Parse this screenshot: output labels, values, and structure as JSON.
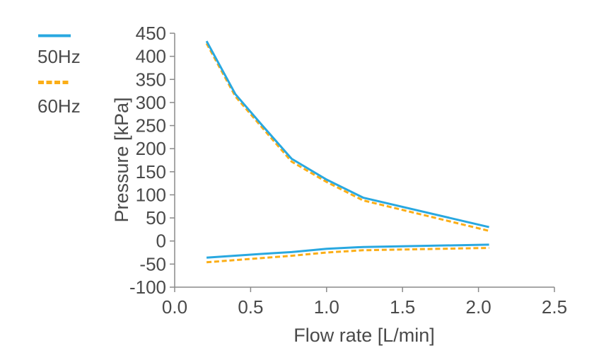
{
  "legend": {
    "items": [
      {
        "label": "50Hz",
        "color": "#29a8e0",
        "style": "solid"
      },
      {
        "label": "60Hz",
        "color": "#fbae17",
        "style": "dashed"
      }
    ]
  },
  "chart_data": {
    "type": "line",
    "title": "",
    "xlabel": "Flow rate [L/min]",
    "ylabel": "Pressure [kPa]",
    "xlim": [
      0.0,
      2.5
    ],
    "ylim": [
      -100,
      450
    ],
    "xticks": [
      0.0,
      0.5,
      1.0,
      1.5,
      2.0,
      2.5
    ],
    "xtick_labels": [
      "0.0",
      "0.5",
      "1.0",
      "1.5",
      "2.0",
      "2.5"
    ],
    "yticks": [
      -100,
      -50,
      0,
      50,
      100,
      150,
      200,
      250,
      300,
      350,
      400,
      450
    ],
    "ytick_labels": [
      "-100",
      "-50",
      "0",
      "50",
      "100",
      "150",
      "200",
      "250",
      "300",
      "350",
      "400",
      "450"
    ],
    "grid": false,
    "legend_position": "top-left",
    "axis_color": "#8a8a8a",
    "text_color": "#4a4a4a",
    "series": [
      {
        "id": "50hz-upper-curve",
        "legend": "50Hz",
        "color": "#29a8e0",
        "dash": "solid",
        "points": [
          [
            0.21,
            433
          ],
          [
            0.4,
            318
          ],
          [
            0.57,
            253
          ],
          [
            0.77,
            178
          ],
          [
            1.0,
            133
          ],
          [
            1.24,
            94
          ],
          [
            2.07,
            30
          ]
        ]
      },
      {
        "id": "60hz-upper-curve",
        "legend": "60Hz",
        "color": "#fbae17",
        "dash": "dashed",
        "points": [
          [
            0.21,
            428
          ],
          [
            0.4,
            313
          ],
          [
            0.57,
            248
          ],
          [
            0.77,
            172
          ],
          [
            1.0,
            128
          ],
          [
            1.24,
            88
          ],
          [
            2.07,
            22
          ]
        ]
      },
      {
        "id": "50hz-lower-curve",
        "legend": "50Hz",
        "color": "#29a8e0",
        "dash": "solid",
        "points": [
          [
            0.21,
            -36
          ],
          [
            0.57,
            -28
          ],
          [
            0.77,
            -24
          ],
          [
            1.0,
            -17
          ],
          [
            1.24,
            -13
          ],
          [
            2.07,
            -8
          ]
        ]
      },
      {
        "id": "60hz-lower-curve",
        "legend": "60Hz",
        "color": "#fbae17",
        "dash": "dashed",
        "points": [
          [
            0.21,
            -46
          ],
          [
            0.57,
            -37
          ],
          [
            0.77,
            -32
          ],
          [
            1.0,
            -25
          ],
          [
            1.24,
            -20
          ],
          [
            2.07,
            -15
          ]
        ]
      }
    ]
  }
}
